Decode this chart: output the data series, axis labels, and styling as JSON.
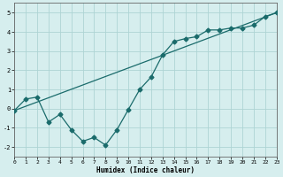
{
  "title": "",
  "xlabel": "Humidex (Indice chaleur)",
  "ylabel": "",
  "background_color": "#d6eeee",
  "grid_color": "#aed4d4",
  "line_color": "#1a6b6b",
  "x_min": 0,
  "x_max": 23,
  "y_min": -2.5,
  "y_max": 5.5,
  "series_zigzag_x": [
    0,
    1,
    2,
    3,
    4,
    5,
    6,
    7,
    8,
    9,
    10,
    11,
    12,
    13,
    14,
    15,
    16,
    17,
    18,
    19,
    20,
    21,
    22,
    23
  ],
  "series_zigzag_y": [
    -0.1,
    0.5,
    0.6,
    -0.7,
    -0.3,
    -1.1,
    -1.7,
    -1.5,
    -1.9,
    -1.1,
    -0.05,
    1.0,
    1.65,
    2.8,
    3.5,
    3.65,
    3.75,
    4.1,
    4.1,
    4.2,
    4.2,
    4.35,
    4.8,
    5.0
  ],
  "series_line_x": [
    0,
    23
  ],
  "series_line_y": [
    -0.1,
    5.0
  ],
  "xtick_labels": [
    "0",
    "1",
    "2",
    "3",
    "4",
    "5",
    "6",
    "7",
    "8",
    "9",
    "10",
    "11",
    "12",
    "13",
    "14",
    "15",
    "16",
    "17",
    "18",
    "19",
    "20",
    "21",
    "22",
    "23"
  ],
  "ytick_values": [
    -2,
    -1,
    0,
    1,
    2,
    3,
    4,
    5
  ],
  "marker_size": 2.5,
  "linewidth": 0.9,
  "tick_fontsize": 4.5,
  "xlabel_fontsize": 5.5
}
